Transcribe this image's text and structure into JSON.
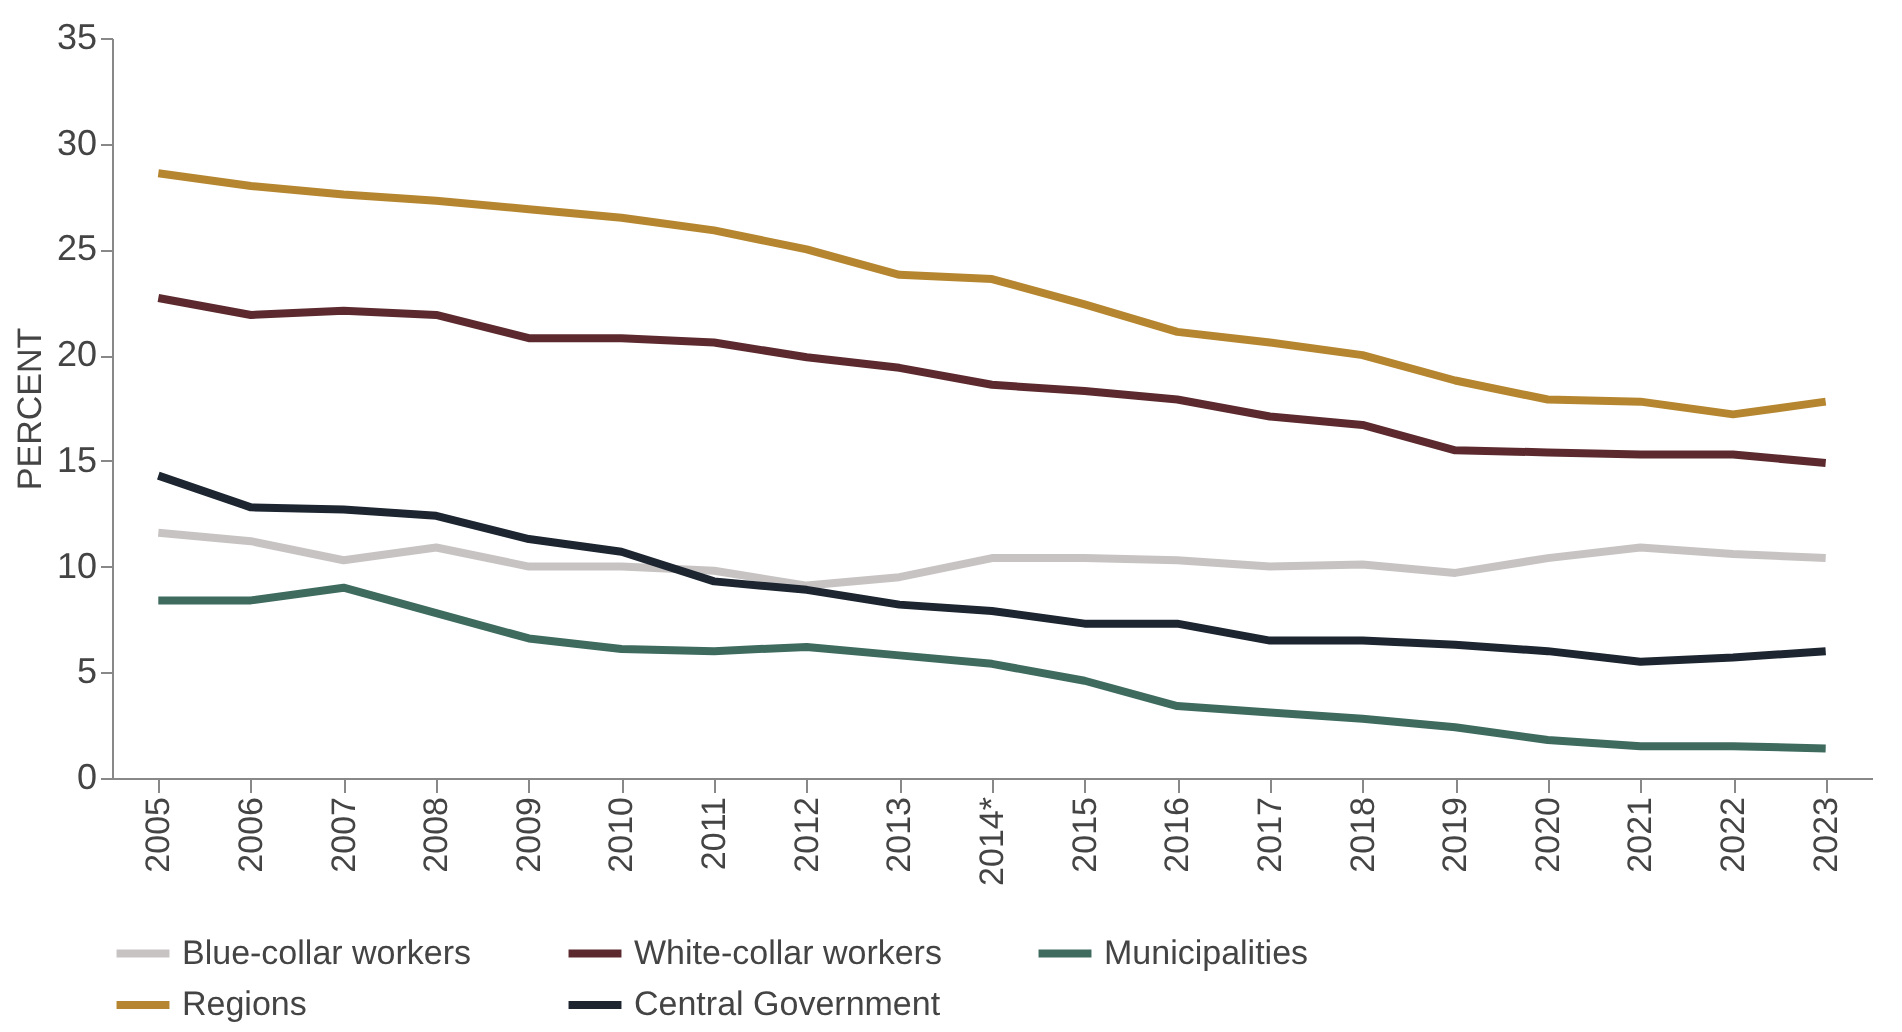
{
  "chart_data": {
    "type": "line",
    "ylabel": "PERCENT",
    "ylim": [
      0,
      35
    ],
    "yticks": [
      0,
      5,
      10,
      15,
      20,
      25,
      30,
      35
    ],
    "grid": false,
    "legend": "bottom",
    "marker": "none",
    "line_style": "solid",
    "categories": [
      "2005",
      "2006",
      "2007",
      "2008",
      "2009",
      "2010",
      "2011",
      "2012",
      "2013",
      "2014*",
      "2015",
      "2016",
      "2017",
      "2018",
      "2019",
      "2020",
      "2021",
      "2022",
      "2023"
    ],
    "series": [
      {
        "name": "Blue-collar workers",
        "color": "#c8c3c3",
        "values": [
          11.6,
          11.2,
          10.3,
          10.9,
          10.0,
          10.0,
          9.8,
          9.1,
          9.5,
          10.4,
          10.4,
          10.3,
          10.0,
          10.1,
          9.7,
          10.4,
          10.9,
          10.6,
          10.4
        ]
      },
      {
        "name": "White-collar workers",
        "color": "#5c2a2e",
        "values": [
          22.7,
          21.9,
          22.1,
          21.9,
          20.8,
          20.8,
          20.6,
          19.9,
          19.4,
          18.6,
          18.3,
          17.9,
          17.1,
          16.7,
          15.5,
          15.4,
          15.3,
          15.3,
          14.9
        ]
      },
      {
        "name": "Municipalities",
        "color": "#3e6b5e",
        "values": [
          8.4,
          8.4,
          9.0,
          7.8,
          6.6,
          6.1,
          6.0,
          6.2,
          5.8,
          5.4,
          4.6,
          3.4,
          3.1,
          2.8,
          2.4,
          1.8,
          1.5,
          1.5,
          1.4
        ]
      },
      {
        "name": "Regions",
        "color": "#b5862f",
        "values": [
          28.6,
          28.0,
          27.6,
          27.3,
          26.9,
          26.5,
          25.9,
          25.0,
          23.8,
          23.6,
          22.4,
          21.1,
          20.6,
          20.0,
          18.8,
          17.9,
          17.8,
          17.2,
          17.8
        ]
      },
      {
        "name": "Central Government",
        "color": "#1c2530",
        "values": [
          14.3,
          12.8,
          12.7,
          12.4,
          11.3,
          10.7,
          9.3,
          8.9,
          8.2,
          7.9,
          7.3,
          7.3,
          6.5,
          6.5,
          6.3,
          6.0,
          5.5,
          5.7,
          6.0
        ]
      }
    ]
  }
}
